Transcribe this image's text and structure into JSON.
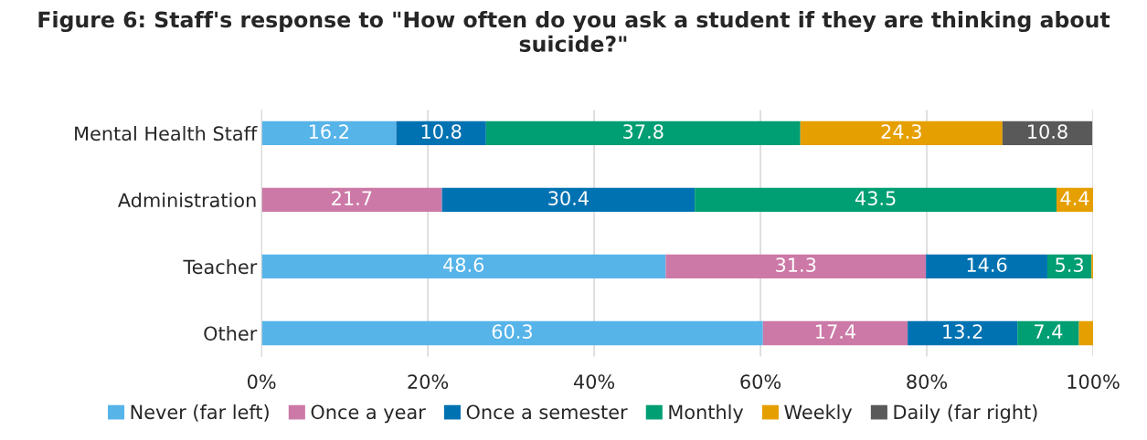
{
  "chart_data": {
    "type": "bar",
    "orientation": "horizontal",
    "stacked": true,
    "title": "Figure 6: Staff's response to \"How often do you ask a student if they are thinking about suicide?\"",
    "categories": [
      "Mental Health Staff",
      "Administration",
      "Teacher",
      "Other"
    ],
    "series": [
      {
        "name": "Never (far left)",
        "color": "#56b4e9",
        "values": [
          16.2,
          null,
          48.6,
          60.3
        ],
        "value_labels": [
          "16.2",
          null,
          "48.6",
          "60.3"
        ]
      },
      {
        "name": "Once a year",
        "color": "#cc79a7",
        "values": [
          null,
          21.7,
          31.3,
          17.4
        ],
        "value_labels": [
          null,
          "21.7",
          "31.3",
          "17.4"
        ]
      },
      {
        "name": "Once a semester",
        "color": "#0072b2",
        "values": [
          10.8,
          30.4,
          14.6,
          13.2
        ],
        "value_labels": [
          "10.8",
          "30.4",
          "14.6",
          "13.2"
        ]
      },
      {
        "name": "Monthly",
        "color": "#009e73",
        "values": [
          37.8,
          43.5,
          5.3,
          7.4
        ],
        "value_labels": [
          "37.8",
          "43.5",
          "5.3",
          "7.4"
        ]
      },
      {
        "name": "Weekly",
        "color": "#e69f00",
        "values": [
          24.3,
          4.4,
          0.2,
          1.7
        ],
        "value_labels": [
          "24.3",
          "4.4",
          null,
          null
        ]
      },
      {
        "name": "Daily (far right)",
        "color": "#595959",
        "values": [
          10.8,
          null,
          null,
          null
        ],
        "value_labels": [
          "10.8",
          null,
          null,
          null
        ]
      }
    ],
    "xlim": [
      0,
      100
    ],
    "xticks": [
      {
        "value": 0,
        "label": "0%"
      },
      {
        "value": 20,
        "label": "20%"
      },
      {
        "value": 40,
        "label": "40%"
      },
      {
        "value": 60,
        "label": "60%"
      },
      {
        "value": 80,
        "label": "80%"
      },
      {
        "value": 100,
        "label": "100%"
      }
    ],
    "grid": "x",
    "legend": "bottom"
  }
}
